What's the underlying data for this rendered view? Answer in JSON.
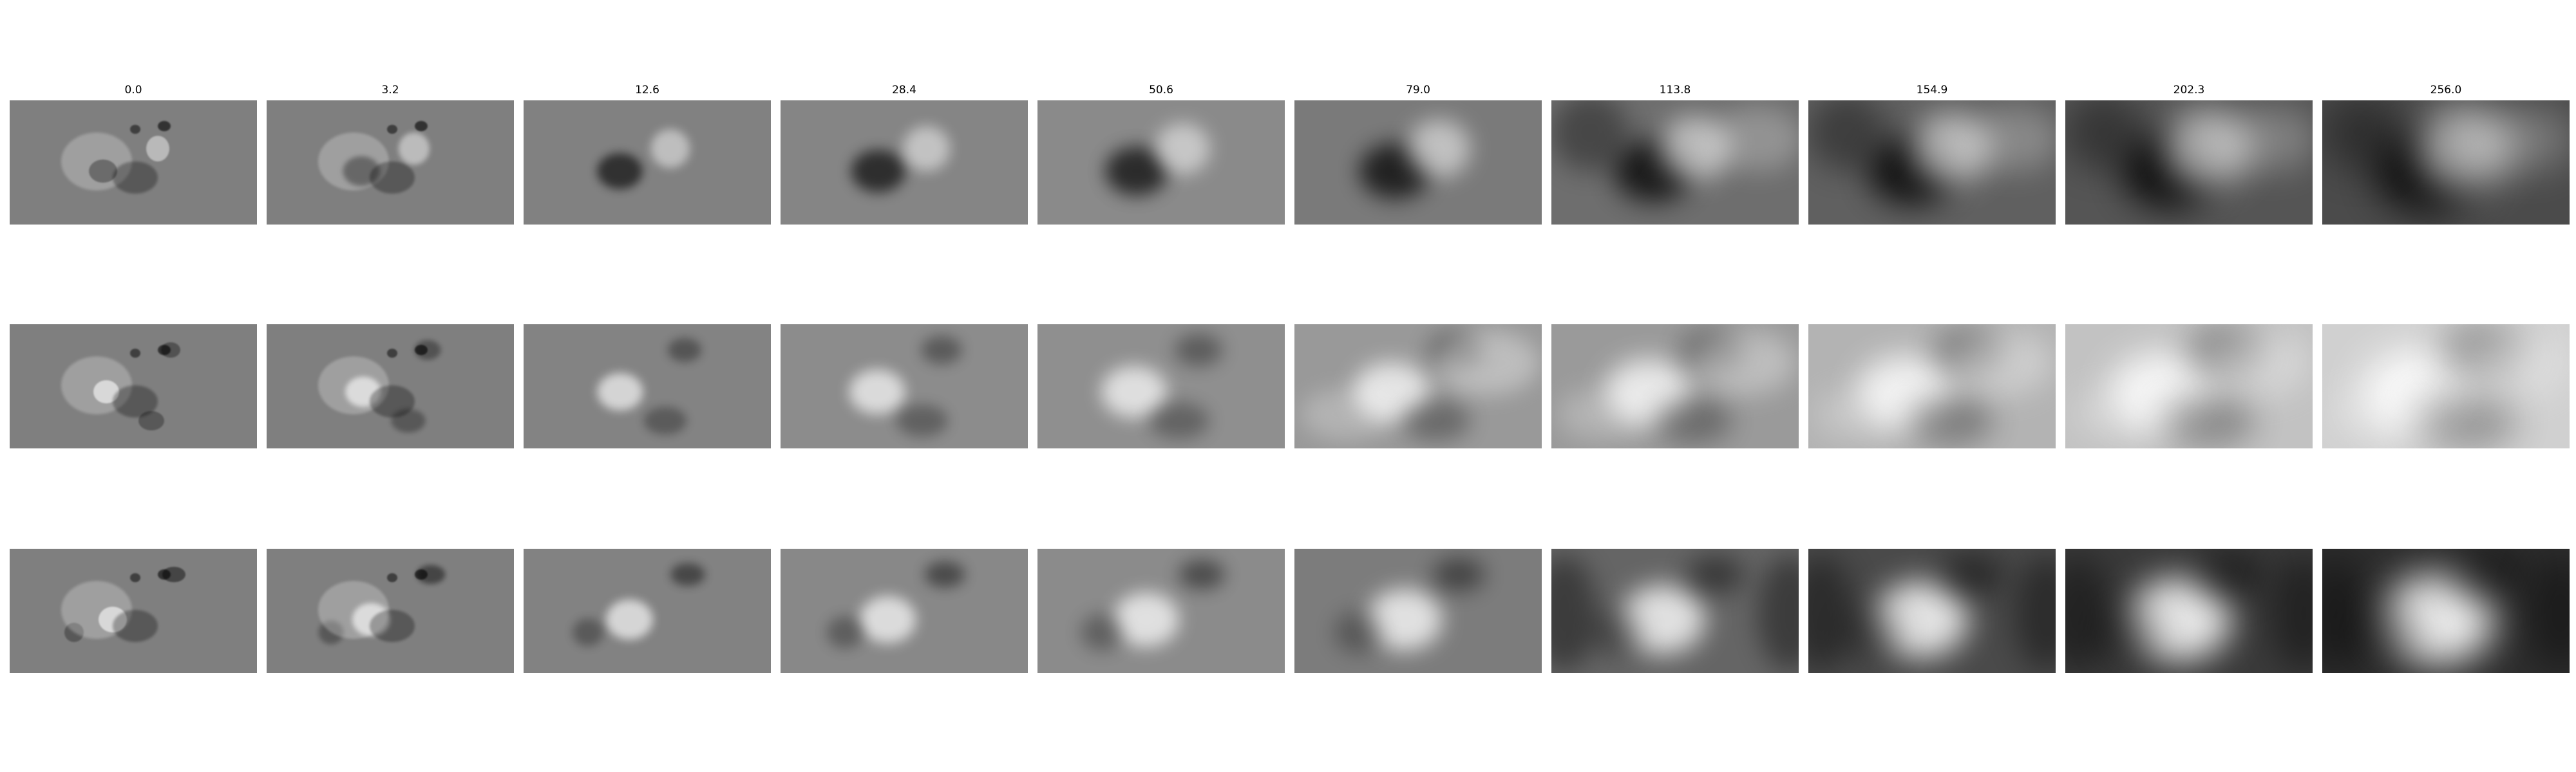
{
  "figure": {
    "background": "#ffffff",
    "column_titles": [
      "0.0",
      "3.2",
      "12.6",
      "28.4",
      "50.6",
      "79.0",
      "113.8",
      "154.9",
      "202.3",
      "256.0"
    ],
    "rows": [
      {
        "id": "row-1",
        "panels": [
          {
            "title": "0.0",
            "base": "#7f7f7f"
          },
          {
            "title": "3.2",
            "base": "#7f7f7f"
          },
          {
            "title": "12.6",
            "base": "#818181"
          },
          {
            "title": "28.4",
            "base": "#858585"
          },
          {
            "title": "50.6",
            "base": "#8a8a8a"
          },
          {
            "title": "79.0",
            "base": "#7a7a7a"
          },
          {
            "title": "113.8",
            "base": "#6e6e6e"
          },
          {
            "title": "154.9",
            "base": "#606060"
          },
          {
            "title": "202.3",
            "base": "#555555"
          },
          {
            "title": "256.0",
            "base": "#4b4b4b"
          }
        ]
      },
      {
        "id": "row-2",
        "panels": [
          {
            "title": "0.0",
            "base": "#7f7f7f"
          },
          {
            "title": "3.2",
            "base": "#7f7f7f"
          },
          {
            "title": "12.6",
            "base": "#838383"
          },
          {
            "title": "28.4",
            "base": "#8c8c8c"
          },
          {
            "title": "50.6",
            "base": "#8f8f8f"
          },
          {
            "title": "79.0",
            "base": "#999999"
          },
          {
            "title": "113.8",
            "base": "#9a9a9a"
          },
          {
            "title": "154.9",
            "base": "#b3b3b3"
          },
          {
            "title": "202.3",
            "base": "#c2c2c2"
          },
          {
            "title": "256.0",
            "base": "#d0d0d0"
          }
        ]
      },
      {
        "id": "row-3",
        "panels": [
          {
            "title": "0.0",
            "base": "#7f7f7f"
          },
          {
            "title": "3.2",
            "base": "#7f7f7f"
          },
          {
            "title": "12.6",
            "base": "#828282"
          },
          {
            "title": "28.4",
            "base": "#888888"
          },
          {
            "title": "50.6",
            "base": "#8b8b8b"
          },
          {
            "title": "79.0",
            "base": "#7c7c7c"
          },
          {
            "title": "113.8",
            "base": "#656565"
          },
          {
            "title": "154.9",
            "base": "#4a4a4a"
          },
          {
            "title": "202.3",
            "base": "#3a3a3a"
          },
          {
            "title": "256.0",
            "base": "#2e2e2e"
          }
        ]
      }
    ]
  }
}
